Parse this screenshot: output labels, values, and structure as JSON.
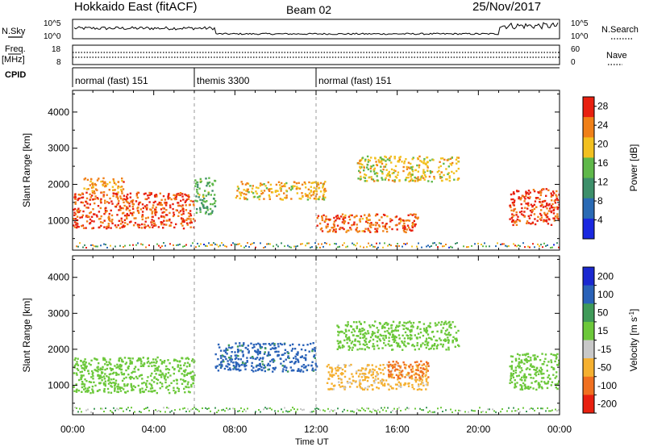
{
  "header": {
    "title": "Hokkaido East (fitACF)",
    "beam": "Beam 02",
    "date": "25/Nov/2017"
  },
  "strips": {
    "nsky": {
      "label": "N.Sky",
      "tick_top": "10^5",
      "tick_bottom": "10^0",
      "right_label": "N.Search",
      "right_tick_top": "10^5",
      "right_tick_bottom": "10^0"
    },
    "freq": {
      "label_top": "Freq.",
      "label_unit": "[MHz]",
      "tick_top": "18",
      "tick_bottom": "8",
      "right_label": "Nave",
      "right_tick_top": "60",
      "right_tick_bottom": "0"
    },
    "cpid": {
      "label": "CPID",
      "segments": [
        {
          "start_hour": 0.0,
          "text": "normal (fast) 151"
        },
        {
          "start_hour": 6.0,
          "text": "themis 3300"
        },
        {
          "start_hour": 12.0,
          "text": "normal (fast) 151"
        }
      ]
    }
  },
  "chart_data": [
    {
      "type": "heatmap",
      "parameter": "Power",
      "ylabel": "Slant Range [km]",
      "ylim": [
        180,
        4600
      ],
      "yticks": [
        "1000",
        "2000",
        "3000",
        "4000"
      ],
      "xlim_hours": [
        0,
        24
      ],
      "colorbar": {
        "label": "Power [dB]",
        "ticks": [
          "4",
          "8",
          "12",
          "16",
          "20",
          "24",
          "28"
        ],
        "range": [
          0,
          30
        ],
        "colors": [
          "#1a28e0",
          "#2a6ab4",
          "#3d8f6a",
          "#5fb84a",
          "#f2c020",
          "#f08018",
          "#e82010"
        ]
      },
      "regions": [
        {
          "t0": 0.0,
          "t1": 6.0,
          "r0": 800,
          "r1": 1800,
          "value": 26
        },
        {
          "t0": 0.5,
          "t1": 2.5,
          "r0": 1800,
          "r1": 2200,
          "value": 22
        },
        {
          "t0": 6.0,
          "t1": 7.0,
          "r0": 1200,
          "r1": 2200,
          "value": 14
        },
        {
          "t0": 8.0,
          "t1": 12.5,
          "r0": 1600,
          "r1": 2100,
          "value": 20
        },
        {
          "t0": 12.0,
          "t1": 17.0,
          "r0": 700,
          "r1": 1200,
          "value": 25
        },
        {
          "t0": 14.0,
          "t1": 19.0,
          "r0": 2100,
          "r1": 2800,
          "value": 19
        },
        {
          "t0": 21.5,
          "t1": 24.0,
          "r0": 900,
          "r1": 1900,
          "value": 27
        }
      ]
    },
    {
      "type": "heatmap",
      "parameter": "Velocity",
      "ylabel": "Slant Range [km]",
      "ylim": [
        180,
        4600
      ],
      "yticks": [
        "1000",
        "2000",
        "3000",
        "4000"
      ],
      "xlabel": "Time UT",
      "xlim_hours": [
        0,
        24
      ],
      "xticks": [
        "00:00",
        "04:00",
        "08:00",
        "12:00",
        "16:00",
        "20:00",
        "00:00"
      ],
      "colorbar": {
        "label": "Velocity [m s",
        "label_sup": "-1",
        "label_end": "]",
        "ticks": [
          "200",
          "100",
          "50",
          "15",
          "-15",
          "-50",
          "-100",
          "-200"
        ],
        "colors": [
          "#1a28d0",
          "#2a62b8",
          "#3f9a58",
          "#6cc83a",
          "#c8c8c8",
          "#f5b030",
          "#f07020",
          "#e82010"
        ]
      },
      "regions": [
        {
          "t0": 0.0,
          "t1": 6.0,
          "r0": 800,
          "r1": 1800,
          "value": 0
        },
        {
          "t0": 7.0,
          "t1": 12.0,
          "r0": 1400,
          "r1": 2200,
          "value": 60
        },
        {
          "t0": 12.5,
          "t1": 17.5,
          "r0": 900,
          "r1": 1600,
          "value": -60
        },
        {
          "t0": 15.5,
          "t1": 17.5,
          "r0": 1200,
          "r1": 1700,
          "value": -130
        },
        {
          "t0": 13.0,
          "t1": 19.0,
          "r0": 2000,
          "r1": 2800,
          "value": 0
        },
        {
          "t0": 21.5,
          "t1": 24.0,
          "r0": 900,
          "r1": 1900,
          "value": 0
        }
      ]
    }
  ]
}
